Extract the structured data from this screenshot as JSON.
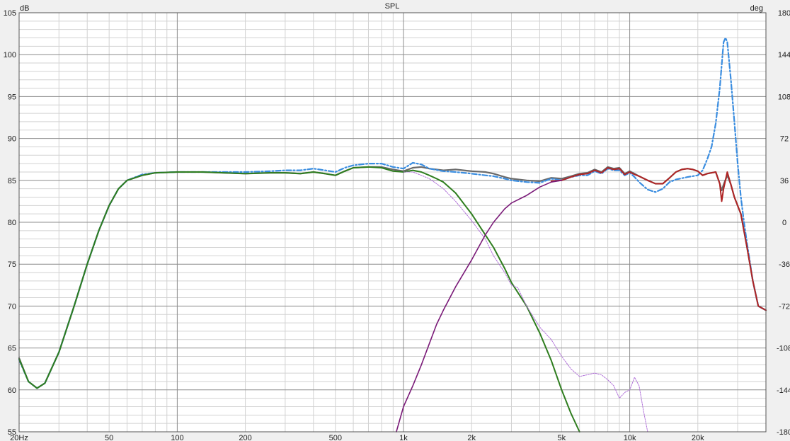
{
  "chart_data": {
    "type": "line",
    "title": "SPL",
    "y_unit_left": "dB",
    "y_unit_right": "deg",
    "x_scale": "log",
    "xlim": [
      20,
      40000
    ],
    "ylim": [
      55,
      105
    ],
    "y2lim": [
      -180,
      180
    ],
    "grid": true,
    "x_ticks": [
      {
        "v": 20,
        "label": "20Hz"
      },
      {
        "v": 50,
        "label": "50"
      },
      {
        "v": 100,
        "label": "100"
      },
      {
        "v": 200,
        "label": "200"
      },
      {
        "v": 500,
        "label": "500"
      },
      {
        "v": 1000,
        "label": "1k"
      },
      {
        "v": 2000,
        "label": "2k"
      },
      {
        "v": 5000,
        "label": "5k"
      },
      {
        "v": 10000,
        "label": "10k"
      },
      {
        "v": 20000,
        "label": "20k"
      }
    ],
    "y_ticks": [
      105,
      100,
      95,
      90,
      85,
      80,
      75,
      70,
      65,
      60,
      55
    ],
    "y2_ticks": [
      180,
      144,
      108,
      72,
      36,
      0,
      -36,
      -72,
      -108,
      -144,
      -180
    ],
    "colors": {
      "sum": "#6a6a6a",
      "sum_sim": "#3a8de0",
      "woofer": "#2e7d1e",
      "woofer_sim": "#b070d8",
      "tweeter": "#b02424",
      "tweeter_sim": "#7a1a78",
      "overall": "#3d5aa8",
      "grid_major": "#8c8c8c",
      "grid_minor": "#d2d2d2",
      "plot_bg": "#ffffff"
    },
    "series": [
      {
        "key": "sum",
        "color": "#6a6a6a",
        "width": 2.2,
        "dash": "",
        "points": [
          [
            20,
            63.8
          ],
          [
            22,
            61
          ],
          [
            24,
            60.2
          ],
          [
            26,
            60.8
          ],
          [
            30,
            64.5
          ],
          [
            35,
            70
          ],
          [
            40,
            75
          ],
          [
            45,
            79
          ],
          [
            50,
            82
          ],
          [
            55,
            84
          ],
          [
            60,
            85
          ],
          [
            70,
            85.6
          ],
          [
            80,
            85.9
          ],
          [
            100,
            86
          ],
          [
            130,
            86
          ],
          [
            160,
            85.9
          ],
          [
            200,
            85.8
          ],
          [
            260,
            85.9
          ],
          [
            300,
            85.9
          ],
          [
            350,
            85.8
          ],
          [
            400,
            86
          ],
          [
            450,
            85.8
          ],
          [
            500,
            85.6
          ],
          [
            550,
            86.1
          ],
          [
            600,
            86.5
          ],
          [
            700,
            86.6
          ],
          [
            800,
            86.6
          ],
          [
            900,
            86.3
          ],
          [
            1000,
            86.1
          ],
          [
            1100,
            86.5
          ],
          [
            1200,
            86.6
          ],
          [
            1300,
            86.4
          ],
          [
            1500,
            86.2
          ],
          [
            1700,
            86.3
          ],
          [
            2000,
            86.1
          ],
          [
            2300,
            86
          ],
          [
            2500,
            85.8
          ],
          [
            2800,
            85.4
          ],
          [
            3000,
            85.2
          ],
          [
            3500,
            85
          ],
          [
            4000,
            84.9
          ],
          [
            4500,
            85.3
          ],
          [
            5000,
            85.2
          ],
          [
            5500,
            85.5
          ],
          [
            6000,
            85.8
          ],
          [
            6500,
            85.9
          ],
          [
            7000,
            86.3
          ],
          [
            7500,
            86
          ],
          [
            8000,
            86.6
          ],
          [
            8500,
            86.4
          ],
          [
            9000,
            86.5
          ],
          [
            9500,
            85.8
          ],
          [
            10000,
            86.1
          ],
          [
            10500,
            85.8
          ],
          [
            11000,
            85.5
          ],
          [
            12000,
            85
          ],
          [
            13000,
            84.6
          ],
          [
            14000,
            84.6
          ],
          [
            15000,
            85.3
          ],
          [
            16000,
            86
          ],
          [
            17000,
            86.3
          ],
          [
            18000,
            86.4
          ],
          [
            19000,
            86.3
          ],
          [
            20000,
            86.1
          ],
          [
            21000,
            85.6
          ],
          [
            22000,
            85.8
          ],
          [
            23000,
            85.9
          ],
          [
            24000,
            86
          ],
          [
            25000,
            84.6
          ],
          [
            25500,
            83.8
          ],
          [
            26000,
            84.5
          ],
          [
            27000,
            85.6
          ],
          [
            28000,
            84.5
          ],
          [
            29000,
            83
          ],
          [
            31000,
            81
          ],
          [
            33000,
            77
          ],
          [
            35000,
            73
          ],
          [
            37000,
            70
          ],
          [
            40000,
            69.5
          ]
        ]
      },
      {
        "key": "sum_sim",
        "color": "#3a8de0",
        "width": 2.2,
        "dash": "7,3,2,3",
        "points": [
          [
            20,
            63.6
          ],
          [
            22,
            61
          ],
          [
            24,
            60.2
          ],
          [
            26,
            60.8
          ],
          [
            30,
            64.5
          ],
          [
            35,
            70
          ],
          [
            40,
            75
          ],
          [
            45,
            79
          ],
          [
            50,
            82
          ],
          [
            55,
            84
          ],
          [
            60,
            85
          ],
          [
            70,
            85.7
          ],
          [
            80,
            85.9
          ],
          [
            100,
            86
          ],
          [
            130,
            86
          ],
          [
            160,
            86
          ],
          [
            200,
            86
          ],
          [
            260,
            86.1
          ],
          [
            300,
            86.2
          ],
          [
            350,
            86.2
          ],
          [
            400,
            86.4
          ],
          [
            450,
            86.2
          ],
          [
            500,
            86
          ],
          [
            550,
            86.5
          ],
          [
            600,
            86.8
          ],
          [
            700,
            87
          ],
          [
            800,
            87
          ],
          [
            900,
            86.6
          ],
          [
            1000,
            86.4
          ],
          [
            1100,
            87.1
          ],
          [
            1200,
            86.9
          ],
          [
            1300,
            86.4
          ],
          [
            1500,
            86.1
          ],
          [
            1700,
            86
          ],
          [
            2000,
            85.8
          ],
          [
            2300,
            85.6
          ],
          [
            2500,
            85.5
          ],
          [
            2800,
            85.2
          ],
          [
            3000,
            85
          ],
          [
            3500,
            84.8
          ],
          [
            4000,
            84.7
          ],
          [
            4500,
            85.2
          ],
          [
            5000,
            85
          ],
          [
            5500,
            85.4
          ],
          [
            6000,
            85.6
          ],
          [
            6500,
            85.6
          ],
          [
            7000,
            86.1
          ],
          [
            7500,
            85.8
          ],
          [
            8000,
            86.4
          ],
          [
            8500,
            86.2
          ],
          [
            9000,
            86.2
          ],
          [
            9500,
            85.6
          ],
          [
            10000,
            85.9
          ],
          [
            10500,
            85.4
          ],
          [
            11000,
            84.8
          ],
          [
            12000,
            83.9
          ],
          [
            13000,
            83.6
          ],
          [
            14000,
            84
          ],
          [
            15000,
            84.8
          ],
          [
            16000,
            85.1
          ],
          [
            18000,
            85.4
          ],
          [
            20000,
            85.6
          ],
          [
            21000,
            86.2
          ],
          [
            22000,
            87.5
          ],
          [
            23000,
            89
          ],
          [
            24000,
            91.8
          ],
          [
            25000,
            96
          ],
          [
            26000,
            101.5
          ],
          [
            26500,
            102
          ],
          [
            27000,
            101.5
          ],
          [
            28000,
            97
          ],
          [
            29000,
            92
          ],
          [
            30000,
            87
          ],
          [
            31000,
            83
          ],
          [
            32000,
            80
          ],
          [
            33000,
            77.5
          ],
          [
            35000,
            73
          ],
          [
            37000,
            70
          ],
          [
            40000,
            69.5
          ]
        ]
      },
      {
        "key": "woofer",
        "color": "#2e7d1e",
        "width": 2.0,
        "dash": "",
        "points": [
          [
            20,
            63.7
          ],
          [
            22,
            61
          ],
          [
            24,
            60.2
          ],
          [
            26,
            60.8
          ],
          [
            30,
            64.5
          ],
          [
            35,
            70
          ],
          [
            40,
            75
          ],
          [
            45,
            79
          ],
          [
            50,
            82
          ],
          [
            55,
            84
          ],
          [
            60,
            85
          ],
          [
            70,
            85.6
          ],
          [
            80,
            85.9
          ],
          [
            100,
            86
          ],
          [
            130,
            86
          ],
          [
            160,
            85.9
          ],
          [
            200,
            85.8
          ],
          [
            260,
            85.9
          ],
          [
            300,
            85.9
          ],
          [
            350,
            85.8
          ],
          [
            400,
            86
          ],
          [
            450,
            85.8
          ],
          [
            500,
            85.6
          ],
          [
            550,
            86.1
          ],
          [
            600,
            86.5
          ],
          [
            700,
            86.6
          ],
          [
            800,
            86.5
          ],
          [
            900,
            86.1
          ],
          [
            1000,
            86
          ],
          [
            1100,
            86.2
          ],
          [
            1200,
            86
          ],
          [
            1300,
            85.6
          ],
          [
            1400,
            85.2
          ],
          [
            1500,
            84.8
          ],
          [
            1700,
            83.5
          ],
          [
            2000,
            81
          ],
          [
            2300,
            78.5
          ],
          [
            2500,
            77
          ],
          [
            2800,
            74.5
          ],
          [
            3000,
            72.8
          ],
          [
            3500,
            70
          ],
          [
            4000,
            66.8
          ],
          [
            4500,
            63.5
          ],
          [
            5000,
            60
          ],
          [
            5500,
            57.2
          ],
          [
            6000,
            55
          ]
        ]
      },
      {
        "key": "woofer_sim",
        "color": "#b070d8",
        "width": 1.0,
        "dash": "2,1.5",
        "points": [
          [
            1000,
            86
          ],
          [
            1100,
            86
          ],
          [
            1200,
            85.6
          ],
          [
            1300,
            85.2
          ],
          [
            1400,
            84.6
          ],
          [
            1500,
            84
          ],
          [
            1700,
            82.5
          ],
          [
            2000,
            80.2
          ],
          [
            2300,
            78
          ],
          [
            2500,
            76
          ],
          [
            2800,
            74
          ],
          [
            3000,
            72.5
          ],
          [
            3200,
            72.2
          ],
          [
            3500,
            70
          ],
          [
            4000,
            67.5
          ],
          [
            4500,
            66
          ],
          [
            5000,
            64
          ],
          [
            5500,
            62.5
          ],
          [
            6000,
            61.6
          ],
          [
            7000,
            62
          ],
          [
            7500,
            61.8
          ],
          [
            8000,
            61.2
          ],
          [
            8500,
            60.5
          ],
          [
            9000,
            59
          ],
          [
            9500,
            59.7
          ],
          [
            10000,
            60
          ],
          [
            10500,
            61.5
          ],
          [
            11000,
            60.5
          ],
          [
            11500,
            57.5
          ],
          [
            12000,
            55
          ]
        ]
      },
      {
        "key": "tweeter",
        "color": "#b02424",
        "width": 2.0,
        "dash": "",
        "points": [
          [
            4500,
            84.9
          ],
          [
            5000,
            85
          ],
          [
            5500,
            85.4
          ],
          [
            6000,
            85.7
          ],
          [
            6500,
            85.8
          ],
          [
            7000,
            86.2
          ],
          [
            7500,
            85.9
          ],
          [
            8000,
            86.5
          ],
          [
            8500,
            86.3
          ],
          [
            9000,
            86.4
          ],
          [
            9500,
            85.7
          ],
          [
            10000,
            86
          ],
          [
            10500,
            85.7
          ],
          [
            11000,
            85.5
          ],
          [
            12000,
            85
          ],
          [
            13000,
            84.6
          ],
          [
            14000,
            84.6
          ],
          [
            15000,
            85.3
          ],
          [
            16000,
            86
          ],
          [
            17000,
            86.3
          ],
          [
            18000,
            86.4
          ],
          [
            19000,
            86.3
          ],
          [
            20000,
            86.1
          ],
          [
            21000,
            85.6
          ],
          [
            22000,
            85.8
          ],
          [
            23000,
            85.9
          ],
          [
            24000,
            86
          ],
          [
            25000,
            84.6
          ],
          [
            25500,
            82.5
          ],
          [
            26000,
            84
          ],
          [
            27000,
            86
          ],
          [
            28000,
            84.5
          ],
          [
            29000,
            83
          ],
          [
            31000,
            81
          ],
          [
            33000,
            77
          ],
          [
            35000,
            73
          ],
          [
            37000,
            70
          ],
          [
            40000,
            69.5
          ]
        ]
      },
      {
        "key": "tweeter_sim",
        "color": "#7a1a78",
        "width": 1.6,
        "dash": "",
        "points": [
          [
            930,
            55
          ],
          [
            1000,
            58
          ],
          [
            1100,
            60.5
          ],
          [
            1200,
            63
          ],
          [
            1300,
            65.5
          ],
          [
            1400,
            67.8
          ],
          [
            1500,
            69.5
          ],
          [
            1700,
            72.3
          ],
          [
            2000,
            75.5
          ],
          [
            2300,
            78.5
          ],
          [
            2500,
            80
          ],
          [
            2800,
            81.6
          ],
          [
            3000,
            82.3
          ],
          [
            3500,
            83.2
          ],
          [
            4000,
            84.2
          ],
          [
            4500,
            84.8
          ],
          [
            5000,
            85
          ]
        ]
      }
    ]
  }
}
